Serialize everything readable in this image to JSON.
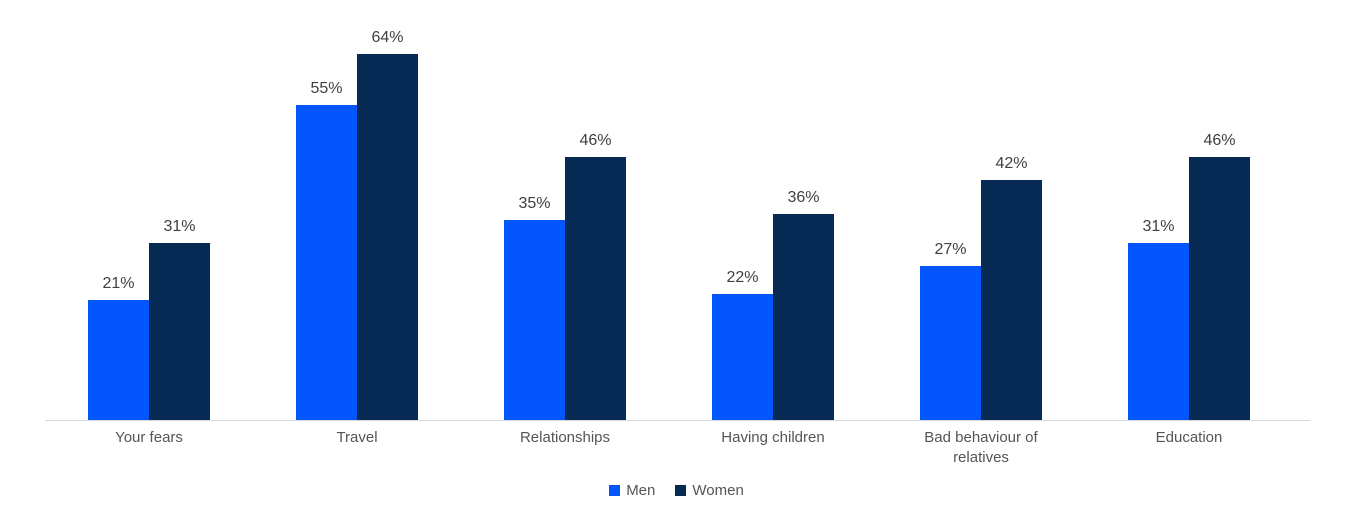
{
  "chart_data": {
    "type": "bar",
    "title": "",
    "xlabel": "",
    "ylabel": "",
    "categories": [
      "Your fears",
      "Travel",
      "Relationships",
      "Having children",
      "Bad behaviour of relatives",
      "Education"
    ],
    "series": [
      {
        "name": "Men",
        "color": "#0455fb",
        "values": [
          21,
          55,
          35,
          22,
          27,
          31
        ]
      },
      {
        "name": "Women",
        "color": "#072a55",
        "values": [
          31,
          64,
          46,
          36,
          42,
          46
        ]
      }
    ],
    "value_suffix": "%",
    "data_labels": true,
    "ylim": [
      0,
      70
    ],
    "grid": false,
    "y_axis_visible": false,
    "legend_position": "bottom"
  },
  "colors": {
    "background": "#ffffff",
    "axis_line": "#d9d9d9",
    "value_label_text": "#404040",
    "category_label_text": "#555555"
  }
}
